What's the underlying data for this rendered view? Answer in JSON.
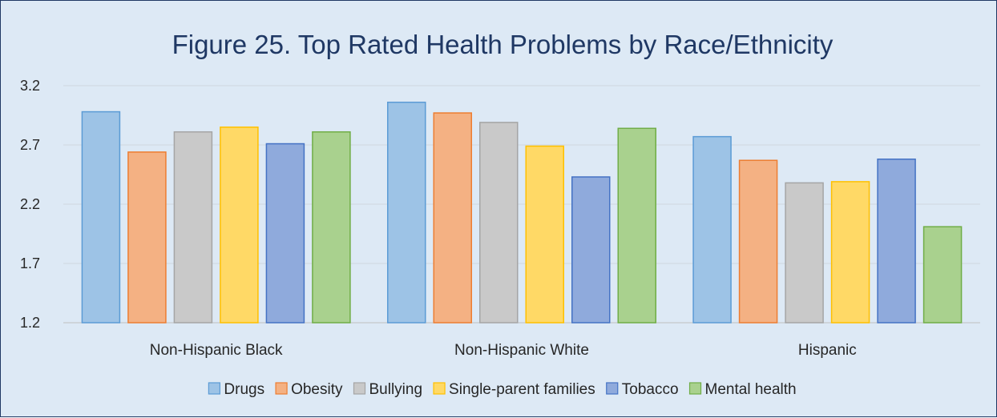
{
  "chart_data": {
    "type": "bar",
    "title": "Figure 25. Top Rated Health Problems by Race/Ethnicity",
    "categories": [
      "Non-Hispanic Black",
      "Non-Hispanic White",
      "Hispanic"
    ],
    "ylim": [
      1.2,
      3.2
    ],
    "yticks": [
      "3.2",
      "2.7",
      "2.2",
      "1.7",
      "1.2"
    ],
    "grid": true,
    "legend_position": "bottom",
    "series": [
      {
        "name": "Drugs",
        "values": [
          2.98,
          3.06,
          2.77
        ],
        "fill": "#9dc3e6",
        "stroke": "#5b9bd5"
      },
      {
        "name": "Obesity",
        "values": [
          2.64,
          2.97,
          2.57
        ],
        "fill": "#f4b183",
        "stroke": "#ed7d31"
      },
      {
        "name": "Bullying",
        "values": [
          2.81,
          2.89,
          2.38
        ],
        "fill": "#c9c9c9",
        "stroke": "#a5a5a5"
      },
      {
        "name": "Single-parent families",
        "values": [
          2.85,
          2.69,
          2.39
        ],
        "fill": "#ffd966",
        "stroke": "#ffc000"
      },
      {
        "name": "Tobacco",
        "values": [
          2.71,
          2.43,
          2.58
        ],
        "fill": "#8faadc",
        "stroke": "#4472c4"
      },
      {
        "name": "Mental health",
        "values": [
          2.81,
          2.84,
          2.01
        ],
        "fill": "#a9d18e",
        "stroke": "#70ad47"
      }
    ]
  }
}
